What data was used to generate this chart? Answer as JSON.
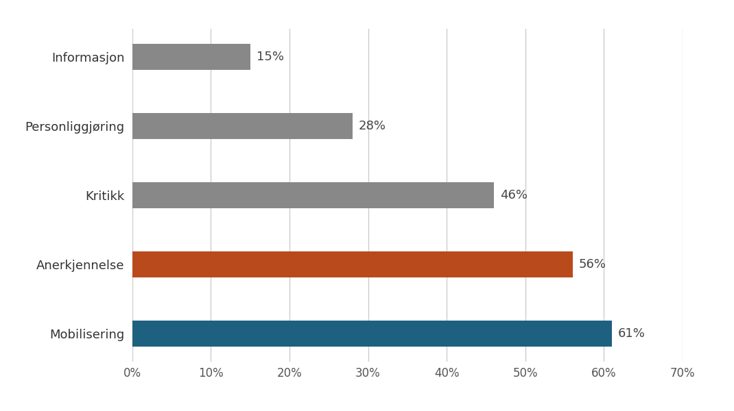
{
  "categories": [
    "Informasjon",
    "Personliggjøring",
    "Kritikk",
    "Anerkjennelse",
    "Mobilisering"
  ],
  "values": [
    15,
    28,
    46,
    56,
    61
  ],
  "bar_colors": [
    "#888888",
    "#888888",
    "#888888",
    "#b94a1c",
    "#1e6080"
  ],
  "label_texts": [
    "15%",
    "28%",
    "46%",
    "56%",
    "61%"
  ],
  "xlim": [
    0,
    70
  ],
  "xtick_values": [
    0,
    10,
    20,
    30,
    40,
    50,
    60,
    70
  ],
  "xtick_labels": [
    "0%",
    "10%",
    "20%",
    "30%",
    "40%",
    "50%",
    "60%",
    "70%"
  ],
  "background_color": "#ffffff",
  "bar_height": 0.38,
  "label_fontsize": 13,
  "tick_fontsize": 12,
  "ytick_fontsize": 13,
  "grid_color": "#cccccc"
}
